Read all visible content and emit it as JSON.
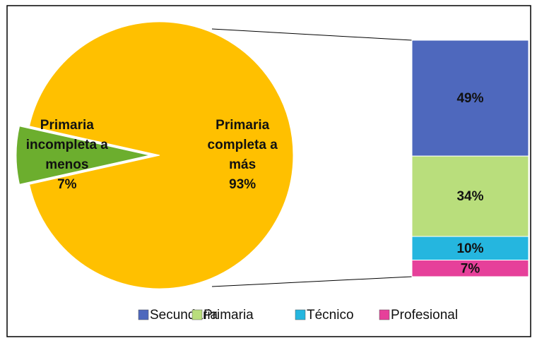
{
  "chart_data": {
    "type": "pie-of-bar",
    "pie": {
      "categories": [
        "Primaria incompleta a menos",
        "Primaria completa a más"
      ],
      "values": [
        7,
        93
      ],
      "value_labels": [
        "7%",
        "93%"
      ],
      "colors": [
        "#6cae2e",
        "#ffc000"
      ],
      "explode": 0
    },
    "bar": {
      "categories": [
        "Secundaria",
        "Primaria",
        "Técnico",
        "Profesional"
      ],
      "values": [
        49,
        34,
        10,
        7
      ],
      "value_labels": [
        "49%",
        "34%",
        "10%",
        "7%"
      ],
      "colors": [
        "#4e68bd",
        "#b9de7c",
        "#25b6df",
        "#e6409a"
      ]
    },
    "legend": "bottom"
  }
}
